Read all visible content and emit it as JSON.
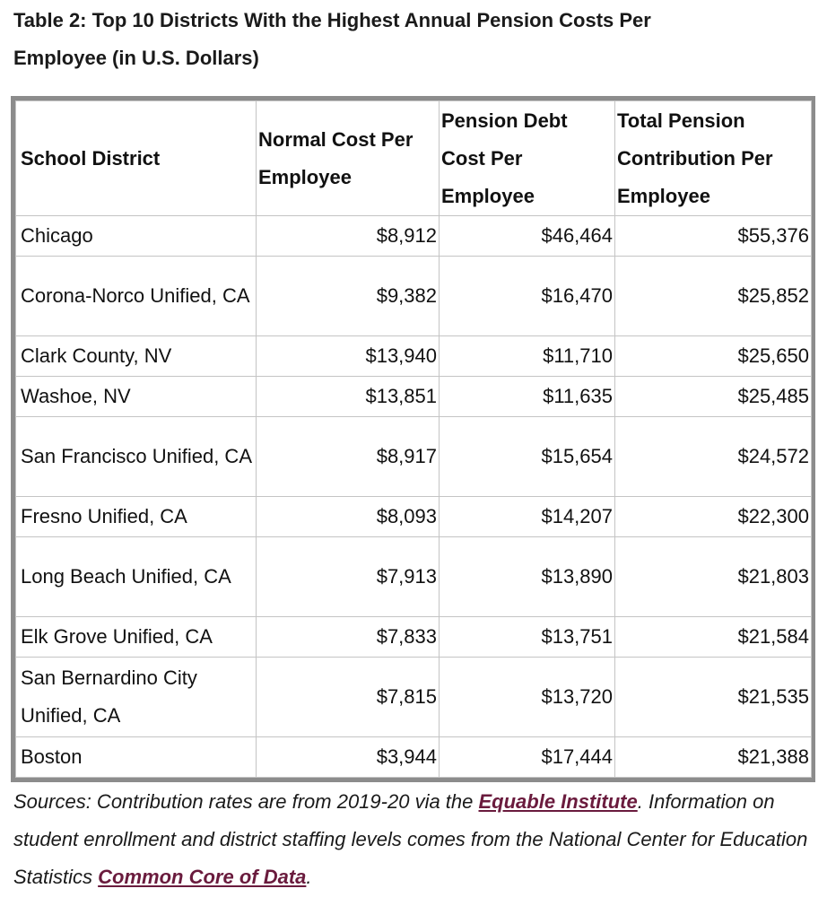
{
  "caption": {
    "line1": "Table 2: Top 10 Districts With the Highest Annual Pension Costs Per",
    "line2": "Employee (in U.S. Dollars)"
  },
  "table": {
    "headers": [
      "School District",
      "Normal Cost Per Employee",
      "Pension Debt Cost Per Employee",
      "Total Pension Contribution Per Employee"
    ],
    "rows": [
      {
        "district": "Chicago",
        "normal": "$8,912",
        "debt": "$46,464",
        "total": "$55,376"
      },
      {
        "district": "Corona-Norco Unified, CA",
        "normal": "$9,382",
        "debt": "$16,470",
        "total": "$25,852"
      },
      {
        "district": "Clark County, NV",
        "normal": "$13,940",
        "debt": "$11,710",
        "total": "$25,650"
      },
      {
        "district": "Washoe, NV",
        "normal": "$13,851",
        "debt": "$11,635",
        "total": "$25,485"
      },
      {
        "district": "San Francisco Unified, CA",
        "normal": "$8,917",
        "debt": "$15,654",
        "total": "$24,572"
      },
      {
        "district": "Fresno Unified, CA",
        "normal": "$8,093",
        "debt": "$14,207",
        "total": "$22,300"
      },
      {
        "district": "Long Beach Unified, CA",
        "normal": "$7,913",
        "debt": "$13,890",
        "total": "$21,803"
      },
      {
        "district": "Elk Grove Unified, CA",
        "normal": "$7,833",
        "debt": "$13,751",
        "total": "$21,584"
      },
      {
        "district": "San Bernardino City Unified, CA",
        "normal": "$7,815",
        "debt": "$13,720",
        "total": "$21,535"
      },
      {
        "district": "Boston",
        "normal": "$3,944",
        "debt": "$17,444",
        "total": "$21,388"
      }
    ]
  },
  "sources": {
    "prefix": "Sources: Contribution rates are from 2019-20 via the ",
    "link1": "Equable Institute",
    "middle": ". Information on student enrollment and district staffing levels comes from the National Center for Education Statistics ",
    "link2": "Common Core of Data",
    "suffix": "."
  },
  "colors": {
    "link": "#6a1b3d",
    "frame": "#8c8c8c",
    "grid": "#c4c4c4"
  }
}
